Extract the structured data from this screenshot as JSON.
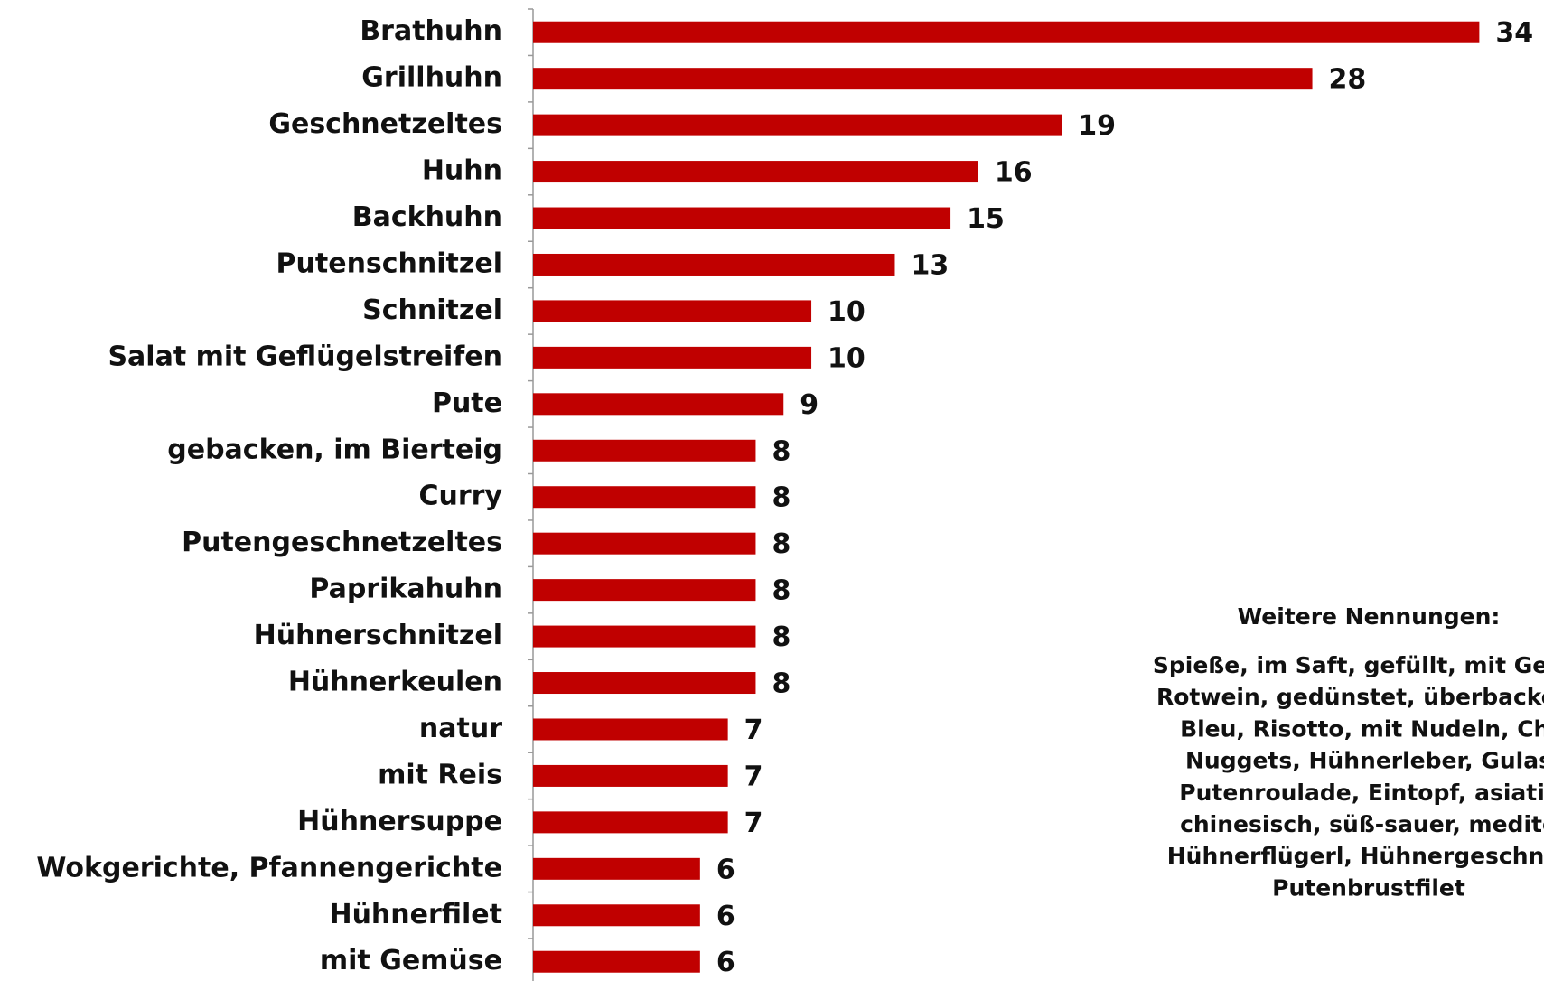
{
  "chart_data": {
    "type": "barh",
    "categories": [
      "Brathuhn",
      "Grillhuhn",
      "Geschnetzeltes",
      "Huhn",
      "Backhuhn",
      "Putenschnitzel",
      "Schnitzel",
      "Salat mit Geflügelstreifen",
      "Pute",
      "gebacken, im Bierteig",
      "Curry",
      "Putengeschnetzeltes",
      "Paprikahuhn",
      "Hühnerschnitzel",
      "Hühnerkeulen",
      "natur",
      "mit Reis",
      "Hühnersuppe",
      "Wokgerichte, Pfannengerichte",
      "Hühnerfilet",
      "mit Gemüse"
    ],
    "values": [
      34,
      28,
      19,
      16,
      15,
      13,
      10,
      10,
      9,
      8,
      8,
      8,
      8,
      8,
      8,
      7,
      7,
      7,
      6,
      6,
      6
    ],
    "color": "#c00000",
    "xlim": [
      0,
      36
    ],
    "annotation": {
      "title": "Weitere Nennungen:",
      "lines": [
        "Spieße, im Saft, gefüllt, mit Gewü",
        "Rotwein, gedünstet, überbacken,",
        "Bleu, Risotto, mit Nudeln, Chi",
        "Nuggets, Hühnerleber, Gulas",
        "Putenroulade, Eintopf, asiatis",
        "chinesisch, süß-sauer, medite",
        "Hühnerflügerl, Hühnergeschnet",
        "Putenbrustfilet"
      ]
    }
  }
}
